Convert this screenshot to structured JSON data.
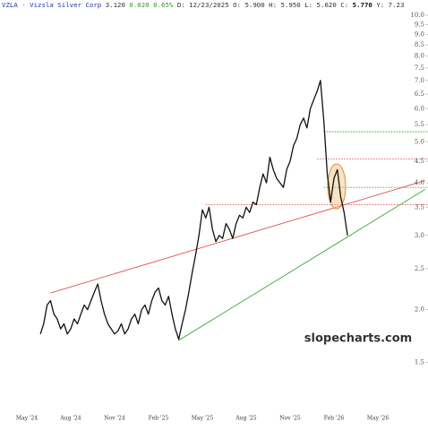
{
  "chart_data": {
    "type": "line",
    "log_scale": true,
    "header": {
      "symbol": "VZLA - Vizsla Silver Corp",
      "last": "3.120",
      "change": "0.020 0.65%",
      "ohlc": "D: 12/23/2025 O: 5.900 H: 5.950 L: 5.620",
      "close_label": "C:",
      "close": "5.770",
      "extra": "Y: 7.23"
    },
    "watermark": "slopecharts.com",
    "categories": [
      "May '24",
      null,
      null,
      null,
      null,
      null,
      null,
      null,
      null,
      null,
      null,
      null,
      null,
      "Aug '24",
      null,
      null,
      null,
      null,
      null,
      null,
      null,
      null,
      null,
      null,
      null,
      null,
      "Nov '24",
      null,
      null,
      null,
      null,
      null,
      null,
      null,
      null,
      null,
      null,
      null,
      null,
      "Feb '25",
      null,
      null,
      null,
      null,
      null,
      null,
      null,
      null,
      null,
      null,
      null,
      null,
      "May '25",
      null,
      null,
      null,
      null,
      null,
      null,
      null,
      null,
      null,
      null,
      null,
      null,
      "Aug '25",
      null,
      null,
      null,
      null,
      null,
      null,
      null,
      null,
      null,
      null,
      null,
      null,
      "Nov '25",
      null,
      null,
      null,
      null,
      null,
      null,
      null,
      null,
      null,
      null,
      null,
      null,
      "Feb '26",
      null,
      null,
      null,
      null,
      null,
      null,
      null,
      null,
      null,
      null,
      null,
      null,
      "May '26"
    ],
    "series": [
      {
        "color": "#111111",
        "values": [
          null,
          null,
          null,
          null,
          1.75,
          1.85,
          2.05,
          2.1,
          1.95,
          1.9,
          1.8,
          1.85,
          1.75,
          1.8,
          1.9,
          1.85,
          1.95,
          2.05,
          2.0,
          2.1,
          2.2,
          2.3,
          2.1,
          1.95,
          1.85,
          1.8,
          1.75,
          1.78,
          1.85,
          1.75,
          1.8,
          1.9,
          1.95,
          1.85,
          2.0,
          2.05,
          1.95,
          2.1,
          2.2,
          2.25,
          2.1,
          2.05,
          2.15,
          1.95,
          1.8,
          1.7,
          1.85,
          2.0,
          2.2,
          2.45,
          2.7,
          3.0,
          3.45,
          3.3,
          3.5,
          3.1,
          2.9,
          3.0,
          2.95,
          3.2,
          3.1,
          2.95,
          3.2,
          3.35,
          3.3,
          3.5,
          3.4,
          3.6,
          3.55,
          3.9,
          4.2,
          4.0,
          4.6,
          4.3,
          4.1,
          4.0,
          3.9,
          4.3,
          4.5,
          4.9,
          5.1,
          5.5,
          5.7,
          5.4,
          6.0,
          6.3,
          6.6,
          7.0,
          5.6,
          4.2,
          3.6,
          4.1,
          4.3,
          3.7,
          3.4,
          3.0,
          null,
          null,
          null,
          null,
          null,
          null,
          null,
          null,
          null
        ]
      }
    ],
    "trendlines": [
      {
        "color": "#e05050",
        "start": [
          7,
          2.19
        ],
        "end": [
          118,
          4.05
        ]
      },
      {
        "color": "#3aa83a",
        "start": [
          45,
          1.69
        ],
        "end": [
          118,
          3.86
        ]
      }
    ],
    "levels": [
      {
        "value": 5.29,
        "color": "#3aa83a",
        "start": 88
      },
      {
        "value": 4.56,
        "color": "#e05050",
        "start": 86
      },
      {
        "value": 3.9,
        "color": "#3aa83a",
        "start": 88
      },
      {
        "value": 3.55,
        "color": "#e05050",
        "start": 53
      }
    ],
    "ylim": [
      1.17,
      10.87
    ],
    "yticks": [
      1.5,
      {
        "value": 2,
        "label": "2.0"
      },
      2.5,
      {
        "value": 3,
        "label": "3.0"
      },
      3.5,
      {
        "value": 4,
        "label": "4.0"
      },
      4.5,
      {
        "value": 5,
        "label": "5.0"
      },
      5.5,
      {
        "value": 6,
        "label": "6.0"
      },
      6.5,
      {
        "value": 7,
        "label": "7.0"
      },
      7.5,
      {
        "value": 8,
        "label": "8.0"
      },
      8.5,
      {
        "value": 9,
        "label": "9.0"
      },
      9.5,
      {
        "value": 10,
        "label": "10.0"
      }
    ]
  }
}
